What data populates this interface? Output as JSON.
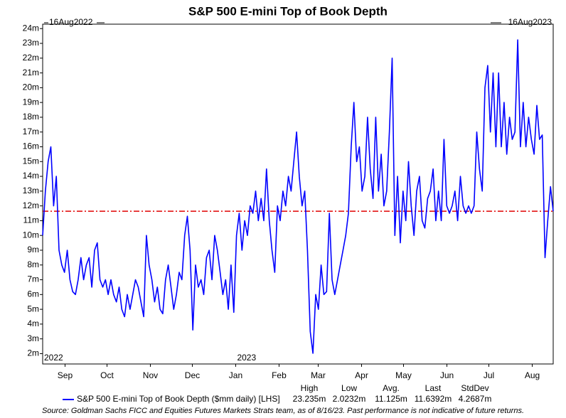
{
  "chart_data": {
    "type": "line",
    "title": "S&P 500 E-mini Top of Book Depth",
    "range_labels": {
      "start": "16Aug2022",
      "end": "16Aug2023"
    },
    "xlim": [
      "2022-08-16",
      "2023-08-16"
    ],
    "xticks": [
      {
        "value": "2022-09-01",
        "label": "Sep"
      },
      {
        "value": "2022-10-01",
        "label": "Oct"
      },
      {
        "value": "2022-11-01",
        "label": "Nov"
      },
      {
        "value": "2022-12-01",
        "label": "Dec"
      },
      {
        "value": "2023-01-01",
        "label": "Jan"
      },
      {
        "value": "2023-02-01",
        "label": "Feb"
      },
      {
        "value": "2023-03-01",
        "label": "Mar"
      },
      {
        "value": "2023-04-01",
        "label": "Apr"
      },
      {
        "value": "2023-05-01",
        "label": "May"
      },
      {
        "value": "2023-06-01",
        "label": "Jun"
      },
      {
        "value": "2023-07-01",
        "label": "Jul"
      },
      {
        "value": "2023-08-01",
        "label": "Aug"
      }
    ],
    "year_labels": [
      {
        "value": "2022-08-16",
        "label": "2022"
      },
      {
        "value": "2023-01-01",
        "label": "2023"
      }
    ],
    "ylim": [
      1.3,
      24.3
    ],
    "yticks": [
      {
        "value": 2,
        "label": "2m"
      },
      {
        "value": 3,
        "label": "3m"
      },
      {
        "value": 4,
        "label": "4m"
      },
      {
        "value": 5,
        "label": "5m"
      },
      {
        "value": 6,
        "label": "6m"
      },
      {
        "value": 7,
        "label": "7m"
      },
      {
        "value": 8,
        "label": "8m"
      },
      {
        "value": 9,
        "label": "9m"
      },
      {
        "value": 10,
        "label": "10m"
      },
      {
        "value": 11,
        "label": "11m"
      },
      {
        "value": 12,
        "label": "12m"
      },
      {
        "value": 13,
        "label": "13m"
      },
      {
        "value": 14,
        "label": "14m"
      },
      {
        "value": 15,
        "label": "15m"
      },
      {
        "value": 16,
        "label": "16m"
      },
      {
        "value": 17,
        "label": "17m"
      },
      {
        "value": 18,
        "label": "18m"
      },
      {
        "value": 19,
        "label": "19m"
      },
      {
        "value": 20,
        "label": "20m"
      },
      {
        "value": 21,
        "label": "21m"
      },
      {
        "value": 22,
        "label": "22m"
      },
      {
        "value": 23,
        "label": "23m"
      },
      {
        "value": 24,
        "label": "24m"
      }
    ],
    "series": [
      {
        "name": "S&P 500 E-mini Top of Book Depth ($mm daily) [LHS]",
        "color": "#0000ff",
        "values": [
          10,
          13,
          15,
          16,
          12,
          14,
          9,
          8,
          7.5,
          9,
          7,
          6.2,
          6,
          7,
          8.5,
          7,
          8,
          8.5,
          6.5,
          9,
          9.5,
          7,
          6.5,
          7,
          6,
          7,
          6,
          5.5,
          6.5,
          5,
          4.5,
          6,
          5,
          6,
          7,
          6.5,
          5.5,
          4.5,
          10,
          8,
          7,
          5.5,
          6.5,
          5,
          4.7,
          7,
          8,
          6.5,
          5,
          6,
          7.5,
          7,
          10,
          11.3,
          9,
          3.6,
          8,
          6.5,
          7,
          6,
          8.5,
          9,
          7,
          10,
          9,
          7.5,
          6,
          7,
          5,
          8,
          4.8,
          10,
          11.5,
          9,
          11,
          10,
          12,
          11.5,
          13,
          11,
          12.5,
          11,
          14.5,
          11,
          9,
          7.5,
          12,
          11,
          13,
          12,
          14,
          13,
          15,
          17,
          14,
          12,
          13,
          9,
          3.5,
          2.0232,
          6,
          5,
          8,
          6,
          6.2,
          11.5,
          7,
          6,
          7,
          8,
          9,
          10,
          11.5,
          16,
          19,
          15,
          16,
          13,
          14,
          18,
          14.5,
          12.5,
          18,
          13,
          15.5,
          12,
          13,
          17,
          22,
          10,
          14,
          9.5,
          13,
          11,
          15,
          12,
          10,
          13,
          14,
          11,
          10.5,
          12.5,
          13,
          14.5,
          11,
          13,
          11,
          16.5,
          12,
          11.5,
          12,
          13,
          11,
          14,
          12,
          11.5,
          12,
          11.5,
          12,
          17,
          14.5,
          13,
          20,
          21.5,
          17,
          21,
          16,
          21,
          16,
          19,
          15.5,
          18,
          16.5,
          17,
          23.235,
          16,
          19,
          16,
          18,
          16.5,
          15.5,
          18.8,
          16.5,
          16.8,
          8.5,
          11,
          13.3,
          11.6392
        ]
      }
    ],
    "hline": {
      "value": 11.64,
      "color": "#e00000"
    },
    "stats": [
      {
        "label": "High",
        "value": "23.235m"
      },
      {
        "label": "Low",
        "value": "2.0232m"
      },
      {
        "label": "Avg.",
        "value": "11.125m"
      },
      {
        "label": "Last",
        "value": "11.6392m"
      },
      {
        "label": "StdDev",
        "value": "4.2687m"
      }
    ]
  },
  "footnote": "Source: Goldman Sachs FICC and Equities Futures Markets Strats team, as of 8/16/23. Past performance is not indicative of future returns."
}
